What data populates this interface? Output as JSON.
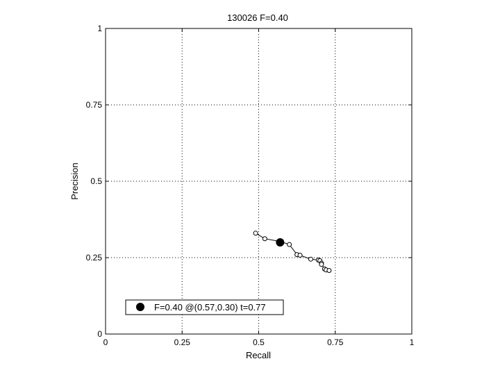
{
  "chart_data": {
    "type": "line",
    "title": "130026 F=0.40",
    "xlabel": "Recall",
    "ylabel": "Precision",
    "xlim": [
      0,
      1
    ],
    "ylim": [
      0,
      1
    ],
    "grid": true,
    "xticks": [
      0,
      0.25,
      0.5,
      0.75,
      1
    ],
    "xtick_labels": [
      "0",
      "0.25",
      "0.5",
      "0.75",
      "1"
    ],
    "yticks": [
      0,
      0.25,
      0.5,
      0.75,
      1
    ],
    "ytick_labels": [
      "0",
      "0.25",
      "0.5",
      "0.75",
      "1"
    ],
    "series": [
      {
        "x": [
          0.49,
          0.52,
          0.57,
          0.6,
          0.625,
          0.635,
          0.67,
          0.695,
          0.7,
          0.705,
          0.705,
          0.715,
          0.72,
          0.73
        ],
        "y": [
          0.33,
          0.312,
          0.303,
          0.293,
          0.26,
          0.258,
          0.245,
          0.242,
          0.24,
          0.232,
          0.228,
          0.213,
          0.21,
          0.208
        ]
      }
    ],
    "best_point": {
      "x": 0.57,
      "y": 0.3
    },
    "legend": {
      "placement": "bottom-left",
      "text": "F=0.40 @(0.57,0.30) t=0.77"
    },
    "colors": {
      "line": "#000000",
      "marker": "#000000",
      "grid": "#000000"
    }
  }
}
